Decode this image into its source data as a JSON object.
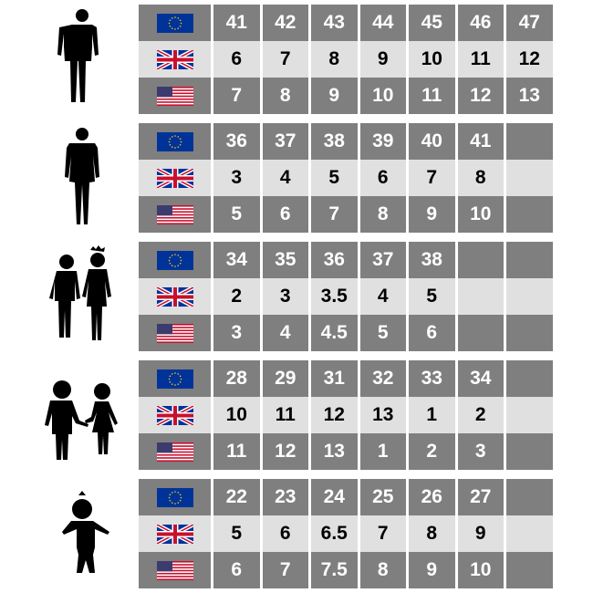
{
  "colors": {
    "dark_row": "#7f7f7f",
    "light_row": "#e0e0e0",
    "eu_blue": "#003399",
    "eu_star": "#ffcc00",
    "uk_red": "#c8102e",
    "us_blue": "#3c3b6e"
  },
  "row_labels": [
    "eu-flag-icon",
    "uk-flag-icon",
    "us-flag-icon"
  ],
  "groups": [
    {
      "figure": "man-silhouette-icon",
      "eu": [
        "41",
        "42",
        "43",
        "44",
        "45",
        "46",
        "47"
      ],
      "uk": [
        "6",
        "7",
        "8",
        "9",
        "10",
        "11",
        "12"
      ],
      "us": [
        "7",
        "8",
        "9",
        "10",
        "11",
        "12",
        "13"
      ]
    },
    {
      "figure": "woman-silhouette-icon",
      "eu": [
        "36",
        "37",
        "38",
        "39",
        "40",
        "41",
        ""
      ],
      "uk": [
        "3",
        "4",
        "5",
        "6",
        "7",
        "8",
        ""
      ],
      "us": [
        "5",
        "6",
        "7",
        "8",
        "9",
        "10",
        ""
      ]
    },
    {
      "figure": "teen-children-silhouette-icon",
      "eu": [
        "34",
        "35",
        "36",
        "37",
        "38",
        "",
        ""
      ],
      "uk": [
        "2",
        "3",
        "3.5",
        "4",
        "5",
        "",
        ""
      ],
      "us": [
        "3",
        "4",
        "4.5",
        "5",
        "6",
        "",
        ""
      ]
    },
    {
      "figure": "children-holding-hands-silhouette-icon",
      "eu": [
        "28",
        "29",
        "31",
        "32",
        "33",
        "34",
        ""
      ],
      "uk": [
        "10",
        "11",
        "12",
        "13",
        "1",
        "2",
        ""
      ],
      "us": [
        "11",
        "12",
        "13",
        "1",
        "2",
        "3",
        ""
      ]
    },
    {
      "figure": "toddler-silhouette-icon",
      "eu": [
        "22",
        "23",
        "24",
        "25",
        "26",
        "27",
        ""
      ],
      "uk": [
        "5",
        "6",
        "6.5",
        "7",
        "8",
        "9",
        ""
      ],
      "us": [
        "6",
        "7",
        "7.5",
        "8",
        "9",
        "10",
        ""
      ]
    }
  ]
}
